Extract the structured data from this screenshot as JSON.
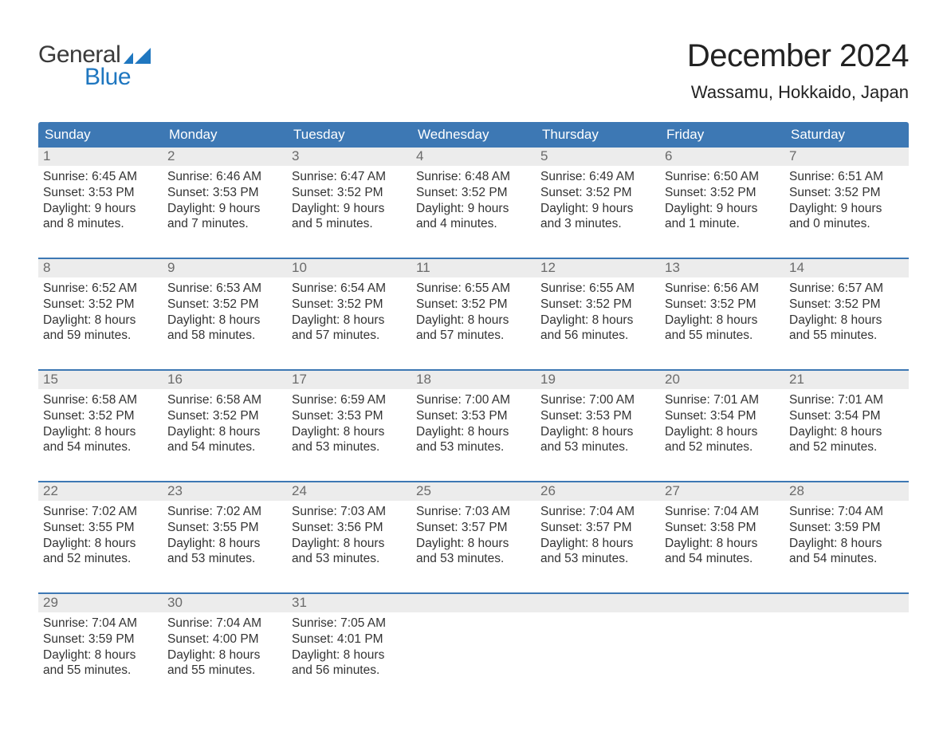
{
  "brand": {
    "word1": "General",
    "word2": "Blue",
    "flag_color": "#1f77c0"
  },
  "title": "December 2024",
  "location": "Wassamu, Hokkaido, Japan",
  "colors": {
    "header_blue": "#3d78b4",
    "gray_band": "#ececec",
    "background": "#ffffff",
    "text": "#222222"
  },
  "days_of_week": [
    "Sunday",
    "Monday",
    "Tuesday",
    "Wednesday",
    "Thursday",
    "Friday",
    "Saturday"
  ],
  "weeks": [
    [
      {
        "n": 1,
        "sunrise": "6:45 AM",
        "sunset": "3:53 PM",
        "daylight": "9 hours and 8 minutes."
      },
      {
        "n": 2,
        "sunrise": "6:46 AM",
        "sunset": "3:53 PM",
        "daylight": "9 hours and 7 minutes."
      },
      {
        "n": 3,
        "sunrise": "6:47 AM",
        "sunset": "3:52 PM",
        "daylight": "9 hours and 5 minutes."
      },
      {
        "n": 4,
        "sunrise": "6:48 AM",
        "sunset": "3:52 PM",
        "daylight": "9 hours and 4 minutes."
      },
      {
        "n": 5,
        "sunrise": "6:49 AM",
        "sunset": "3:52 PM",
        "daylight": "9 hours and 3 minutes."
      },
      {
        "n": 6,
        "sunrise": "6:50 AM",
        "sunset": "3:52 PM",
        "daylight": "9 hours and 1 minute."
      },
      {
        "n": 7,
        "sunrise": "6:51 AM",
        "sunset": "3:52 PM",
        "daylight": "9 hours and 0 minutes."
      }
    ],
    [
      {
        "n": 8,
        "sunrise": "6:52 AM",
        "sunset": "3:52 PM",
        "daylight": "8 hours and 59 minutes."
      },
      {
        "n": 9,
        "sunrise": "6:53 AM",
        "sunset": "3:52 PM",
        "daylight": "8 hours and 58 minutes."
      },
      {
        "n": 10,
        "sunrise": "6:54 AM",
        "sunset": "3:52 PM",
        "daylight": "8 hours and 57 minutes."
      },
      {
        "n": 11,
        "sunrise": "6:55 AM",
        "sunset": "3:52 PM",
        "daylight": "8 hours and 57 minutes."
      },
      {
        "n": 12,
        "sunrise": "6:55 AM",
        "sunset": "3:52 PM",
        "daylight": "8 hours and 56 minutes."
      },
      {
        "n": 13,
        "sunrise": "6:56 AM",
        "sunset": "3:52 PM",
        "daylight": "8 hours and 55 minutes."
      },
      {
        "n": 14,
        "sunrise": "6:57 AM",
        "sunset": "3:52 PM",
        "daylight": "8 hours and 55 minutes."
      }
    ],
    [
      {
        "n": 15,
        "sunrise": "6:58 AM",
        "sunset": "3:52 PM",
        "daylight": "8 hours and 54 minutes."
      },
      {
        "n": 16,
        "sunrise": "6:58 AM",
        "sunset": "3:52 PM",
        "daylight": "8 hours and 54 minutes."
      },
      {
        "n": 17,
        "sunrise": "6:59 AM",
        "sunset": "3:53 PM",
        "daylight": "8 hours and 53 minutes."
      },
      {
        "n": 18,
        "sunrise": "7:00 AM",
        "sunset": "3:53 PM",
        "daylight": "8 hours and 53 minutes."
      },
      {
        "n": 19,
        "sunrise": "7:00 AM",
        "sunset": "3:53 PM",
        "daylight": "8 hours and 53 minutes."
      },
      {
        "n": 20,
        "sunrise": "7:01 AM",
        "sunset": "3:54 PM",
        "daylight": "8 hours and 52 minutes."
      },
      {
        "n": 21,
        "sunrise": "7:01 AM",
        "sunset": "3:54 PM",
        "daylight": "8 hours and 52 minutes."
      }
    ],
    [
      {
        "n": 22,
        "sunrise": "7:02 AM",
        "sunset": "3:55 PM",
        "daylight": "8 hours and 52 minutes."
      },
      {
        "n": 23,
        "sunrise": "7:02 AM",
        "sunset": "3:55 PM",
        "daylight": "8 hours and 53 minutes."
      },
      {
        "n": 24,
        "sunrise": "7:03 AM",
        "sunset": "3:56 PM",
        "daylight": "8 hours and 53 minutes."
      },
      {
        "n": 25,
        "sunrise": "7:03 AM",
        "sunset": "3:57 PM",
        "daylight": "8 hours and 53 minutes."
      },
      {
        "n": 26,
        "sunrise": "7:04 AM",
        "sunset": "3:57 PM",
        "daylight": "8 hours and 53 minutes."
      },
      {
        "n": 27,
        "sunrise": "7:04 AM",
        "sunset": "3:58 PM",
        "daylight": "8 hours and 54 minutes."
      },
      {
        "n": 28,
        "sunrise": "7:04 AM",
        "sunset": "3:59 PM",
        "daylight": "8 hours and 54 minutes."
      }
    ],
    [
      {
        "n": 29,
        "sunrise": "7:04 AM",
        "sunset": "3:59 PM",
        "daylight": "8 hours and 55 minutes."
      },
      {
        "n": 30,
        "sunrise": "7:04 AM",
        "sunset": "4:00 PM",
        "daylight": "8 hours and 55 minutes."
      },
      {
        "n": 31,
        "sunrise": "7:05 AM",
        "sunset": "4:01 PM",
        "daylight": "8 hours and 56 minutes."
      },
      null,
      null,
      null,
      null
    ]
  ],
  "labels": {
    "sunrise_prefix": "Sunrise: ",
    "sunset_prefix": "Sunset: ",
    "daylight_prefix": "Daylight: "
  }
}
